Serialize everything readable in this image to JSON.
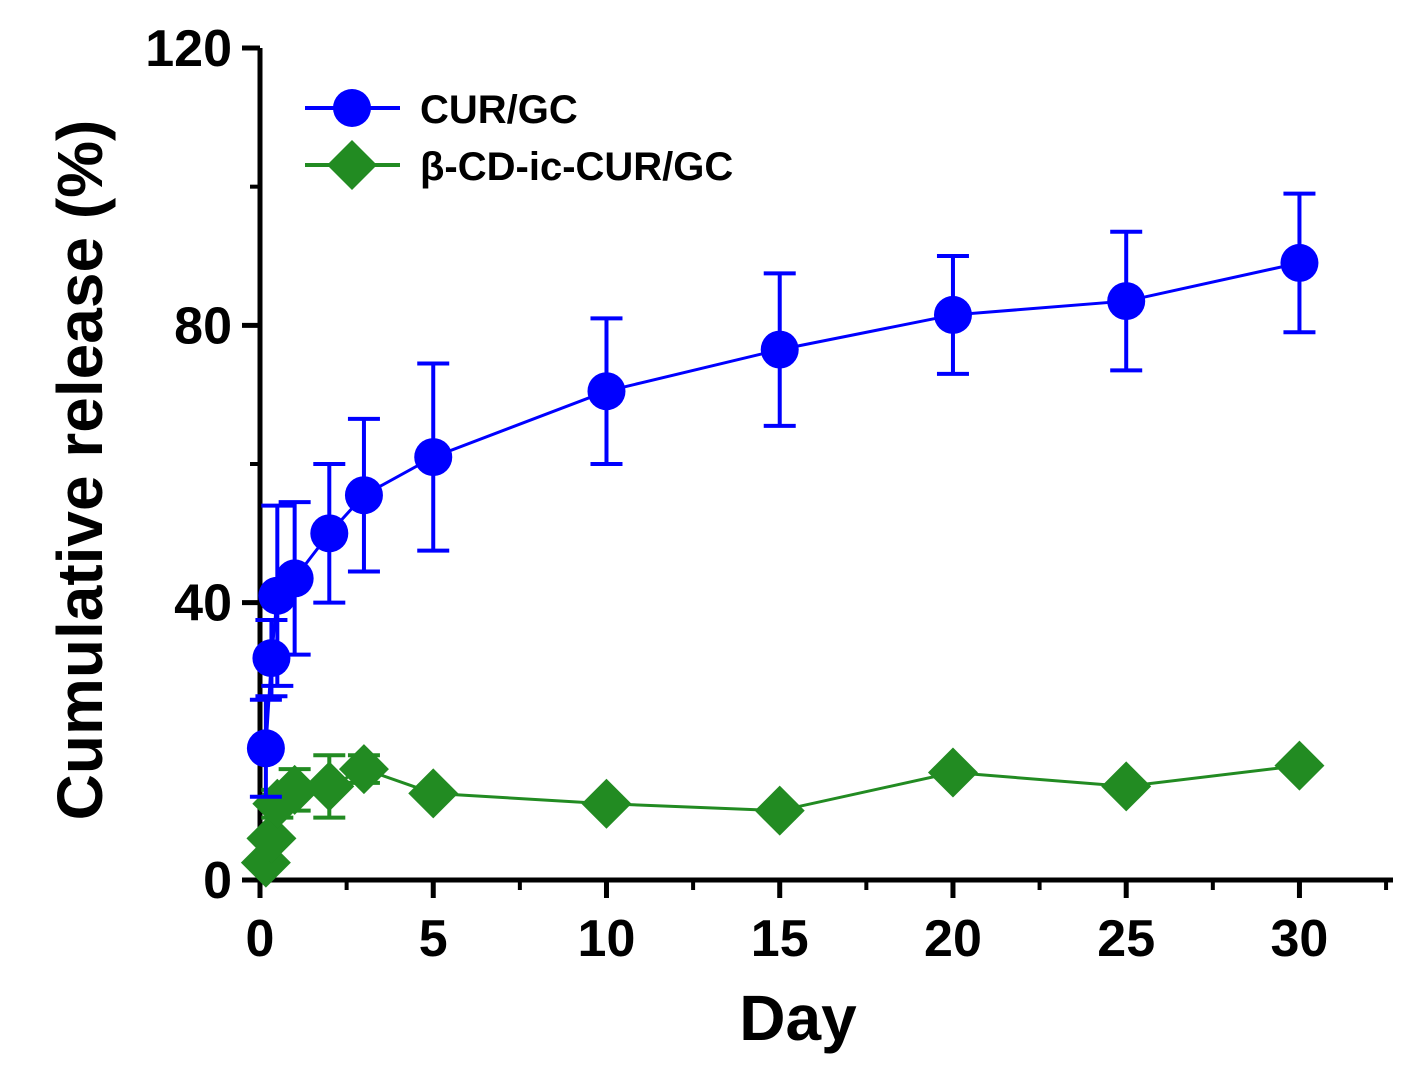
{
  "chart_data": {
    "type": "line",
    "title": "",
    "xlabel": "Day",
    "ylabel": "Cumulative release (%)",
    "xlim": [
      0,
      32.7
    ],
    "ylim": [
      0,
      120
    ],
    "xticks": [
      0,
      5,
      10,
      15,
      20,
      25,
      30
    ],
    "yticks": [
      0,
      40,
      80,
      120
    ],
    "grid": false,
    "legend_position": "top-left",
    "series": [
      {
        "name": "CUR/GC",
        "color": "#0000ff",
        "marker": "circle",
        "x": [
          0.17,
          0.33,
          0.5,
          1,
          2,
          3,
          5,
          10,
          15,
          20,
          25,
          30
        ],
        "y": [
          19,
          32,
          41,
          43.5,
          50,
          55.5,
          61,
          70.5,
          76.5,
          81.5,
          83.5,
          89
        ],
        "err": [
          7,
          5.5,
          13,
          11,
          10,
          11,
          13.5,
          10.5,
          11,
          8.5,
          10,
          10
        ]
      },
      {
        "name": "β-CD-ic-CUR/GC",
        "color": "#228b22",
        "marker": "diamond",
        "x": [
          0.17,
          0.33,
          0.5,
          1,
          2,
          3,
          5,
          10,
          15,
          20,
          25,
          30
        ],
        "y": [
          2.5,
          6,
          11,
          13,
          13.5,
          16,
          12.5,
          11,
          10,
          15.5,
          13.5,
          16.5
        ],
        "err": [
          1,
          1,
          2,
          3,
          4.5,
          2,
          1,
          1,
          1,
          1,
          1,
          1
        ]
      }
    ]
  }
}
